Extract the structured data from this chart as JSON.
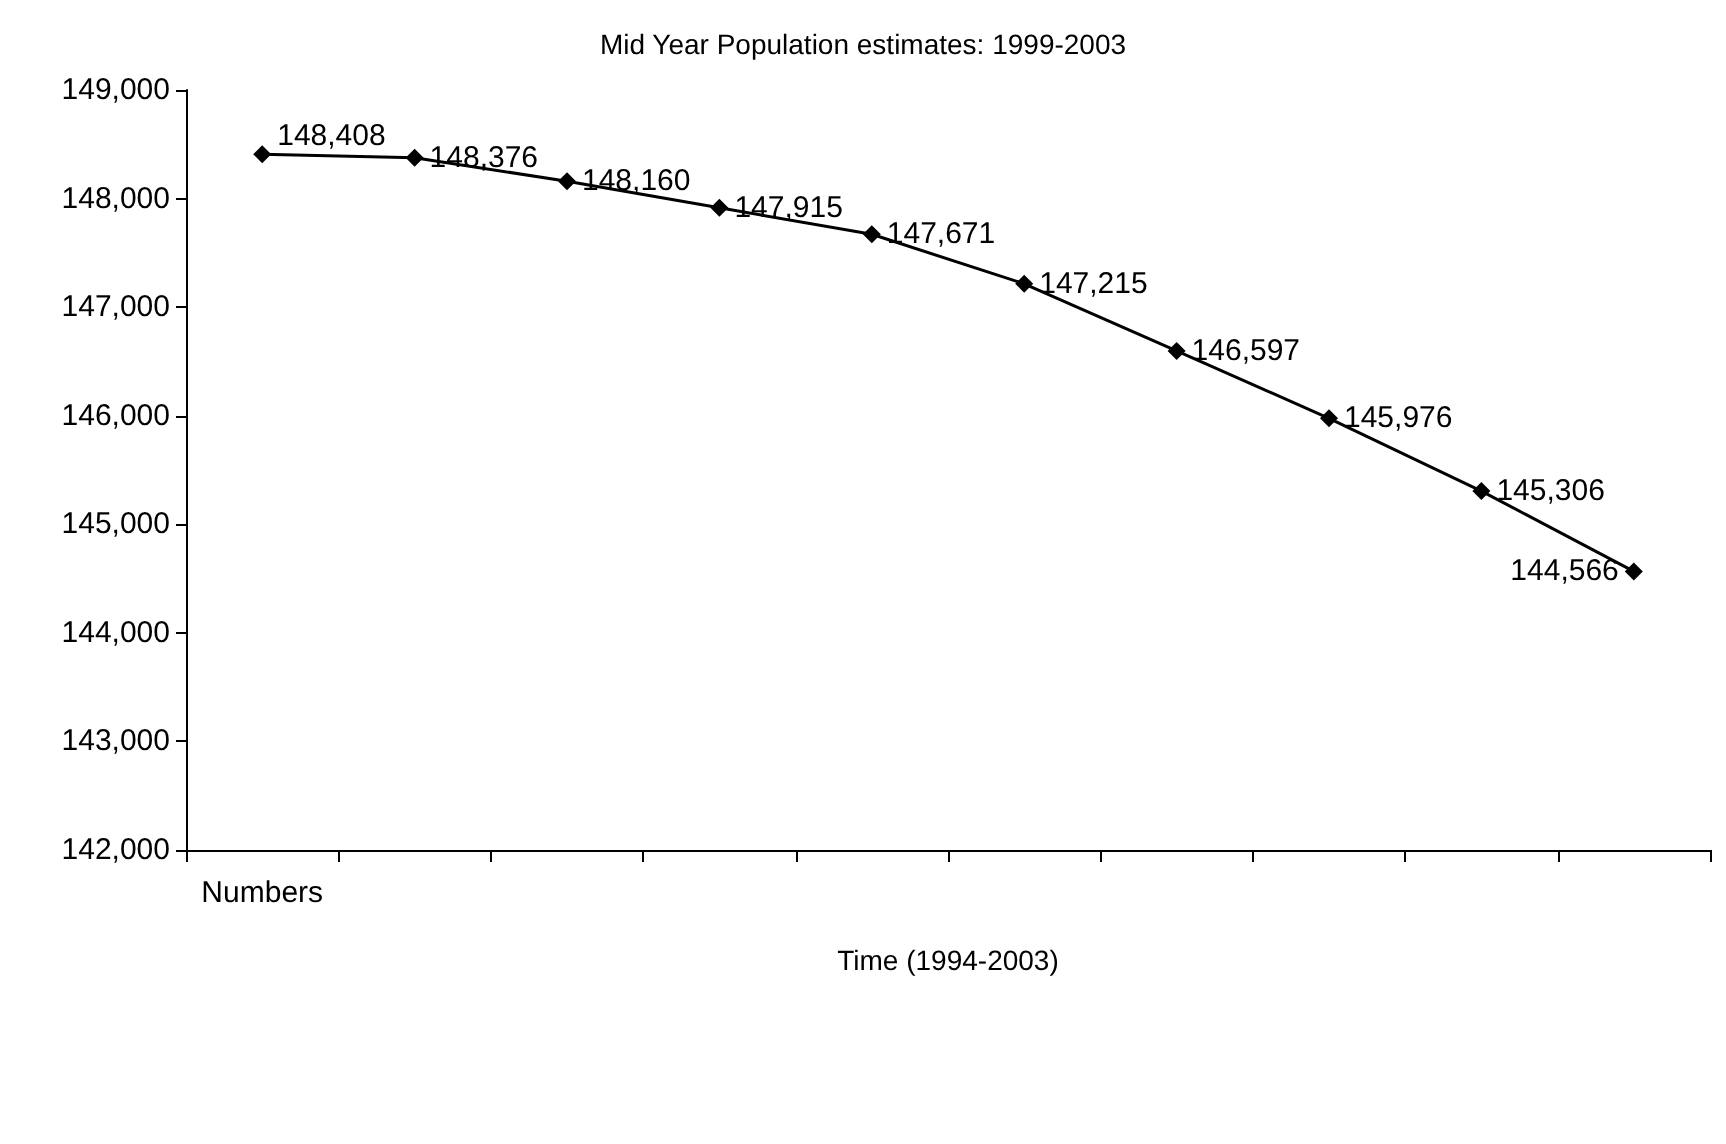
{
  "chart_data": {
    "type": "line",
    "title": "Mid Year Population estimates: 1999-2003",
    "xlabel": "Time (1994-2003)",
    "categories": [
      "Numbers",
      null,
      null,
      null,
      null,
      null,
      null,
      null,
      null,
      null
    ],
    "series": [
      {
        "color": "#000000",
        "values": [
          148408,
          148376,
          148160,
          147915,
          147671,
          147215,
          146597,
          145976,
          145306,
          144566
        ],
        "value_labels": [
          "148,408",
          "148,376",
          "148,160",
          "147,915",
          "147,671",
          "147,215",
          "146,597",
          "145,976",
          "145,306",
          "144,566"
        ]
      }
    ],
    "ylim": [
      142000,
      149000
    ],
    "yticks": [
      {
        "value": 142000,
        "label": "142,000"
      },
      {
        "value": 143000,
        "label": "143,000"
      },
      {
        "value": 144000,
        "label": "144,000"
      },
      {
        "value": 145000,
        "label": "145,000"
      },
      {
        "value": 146000,
        "label": "146,000"
      },
      {
        "value": 147000,
        "label": "147,000"
      },
      {
        "value": 148000,
        "label": "148,000"
      },
      {
        "value": 149000,
        "label": "149,000"
      }
    ],
    "marker": "diamond",
    "line_style": "solid",
    "grid": false
  }
}
